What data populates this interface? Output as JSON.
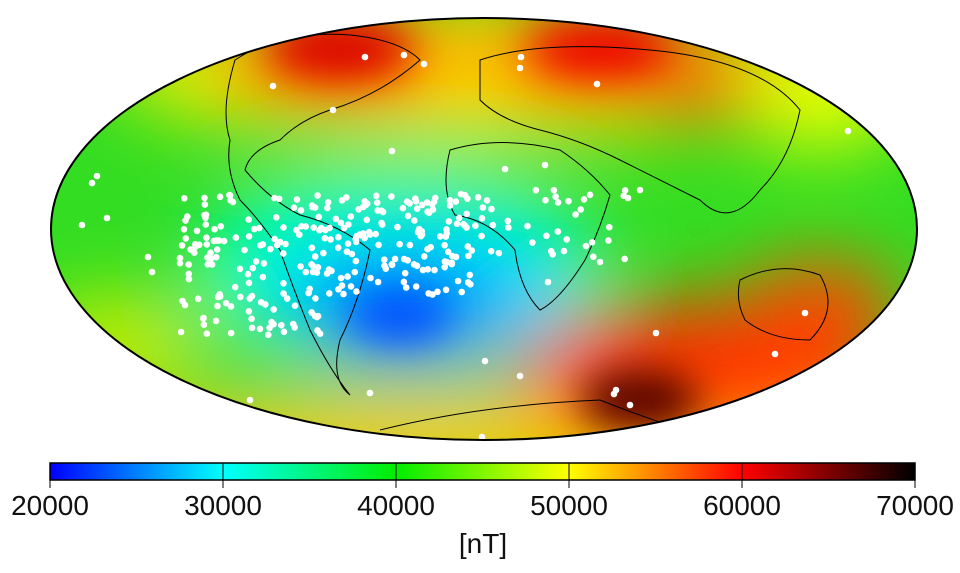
{
  "map": {
    "projection": "Mollweide (global)",
    "quantity_colors": {
      "low": "#0000ff",
      "mid_low": "#00ffff",
      "mid": "#00ff00",
      "mid_high": "#ffff00",
      "high": "#ff0000",
      "max": "#000000"
    },
    "points_color": "#ffffff",
    "coastline_color": "#000000"
  },
  "colorbar": {
    "min": 20000,
    "max": 70000,
    "ticks": [
      "20000",
      "30000",
      "40000",
      "50000",
      "60000",
      "70000"
    ],
    "unit": "[nT]",
    "stops": [
      "#0000ff",
      "#00ffff",
      "#00ff00",
      "#ffff00",
      "#ff0000",
      "#000000"
    ]
  }
}
